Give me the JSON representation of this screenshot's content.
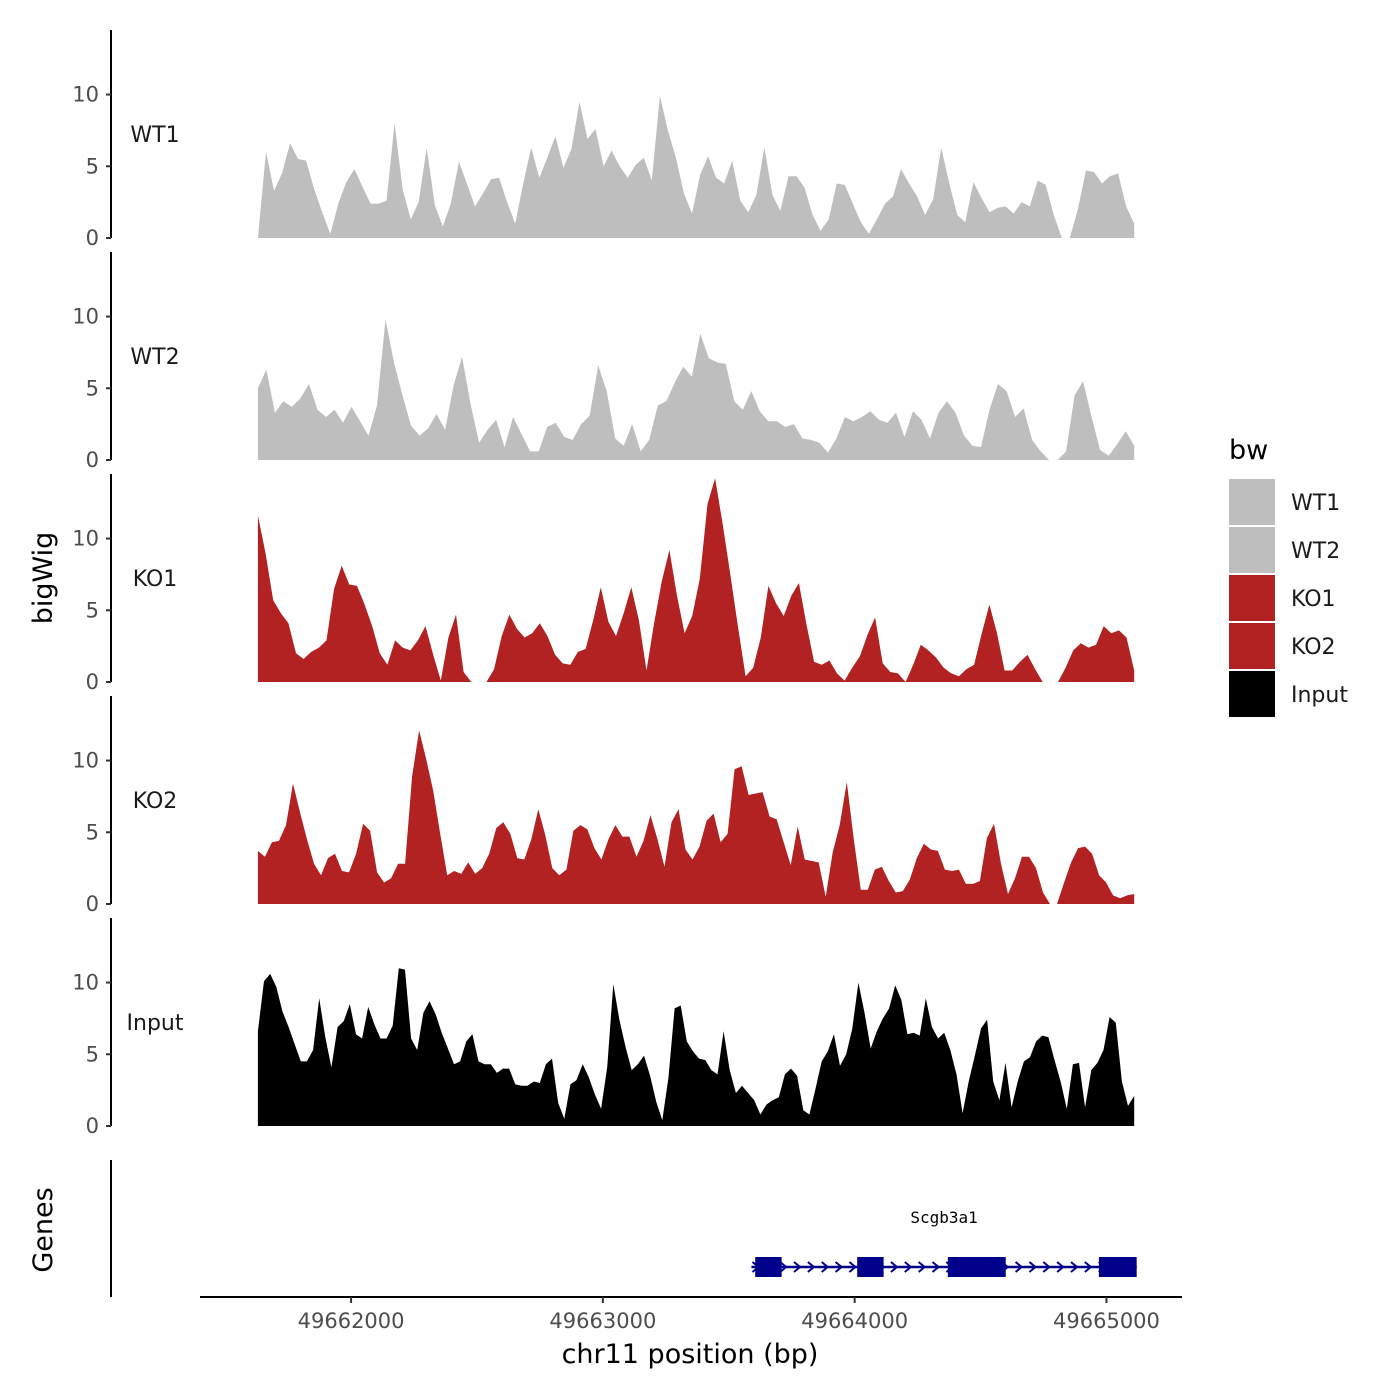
{
  "chart_data": {
    "type": "area",
    "ylabel": "bigWig",
    "xlabel": "chr11 position (bp)",
    "genes_label": "Genes",
    "xlim": [
      49661400,
      49665300
    ],
    "data_xrange": [
      49661630,
      49665110
    ],
    "x_ticks": [
      {
        "value": 49662000,
        "label": "49662000"
      },
      {
        "value": 49663000,
        "label": "49663000"
      },
      {
        "value": 49664000,
        "label": "49664000"
      },
      {
        "value": 49665000,
        "label": "49665000"
      }
    ],
    "ylim": [
      0,
      14.5
    ],
    "y_ticks": [
      {
        "value": 0,
        "label": "0"
      },
      {
        "value": 5,
        "label": "5"
      },
      {
        "value": 10,
        "label": "10"
      }
    ],
    "legend": {
      "title": "bw",
      "entries": [
        {
          "label": "WT1",
          "color": "#bebebe"
        },
        {
          "label": "WT2",
          "color": "#bebebe"
        },
        {
          "label": "KO1",
          "color": "#b22222"
        },
        {
          "label": "KO2",
          "color": "#b22222"
        },
        {
          "label": "Input",
          "color": "#000000"
        }
      ]
    },
    "series": [
      {
        "name": "WT1",
        "color": "#bebebe",
        "values": [
          0,
          6,
          3.3,
          4.5,
          6.6,
          5.5,
          5.4,
          3.4,
          1.8,
          0.3,
          2.4,
          3.9,
          4.8,
          3.6,
          2.4,
          2.4,
          2.6,
          8,
          3.4,
          1.3,
          2.5,
          6.3,
          2.3,
          0.8,
          2.4,
          5.3,
          3.8,
          2.2,
          3.1,
          4.1,
          4.2,
          2.5,
          1,
          3.8,
          6.3,
          4.2,
          5.6,
          7.1,
          4.9,
          6.2,
          9.5,
          6.9,
          7.6,
          5,
          6.1,
          5,
          4.2,
          5.1,
          5.6,
          4,
          9.9,
          7.5,
          5.6,
          3.1,
          1.7,
          4.4,
          5.7,
          4.2,
          3.8,
          5.4,
          2.6,
          1.8,
          3,
          6.3,
          3,
          1.9,
          4.3,
          4.3,
          3.5,
          1.6,
          0.5,
          1.3,
          3.8,
          3.7,
          2.4,
          1.1,
          0.3,
          1.3,
          2.4,
          2.9,
          4.8,
          3.8,
          2.9,
          1.6,
          2.7,
          6.3,
          3.8,
          1.6,
          1.1,
          3.9,
          2.8,
          1.8,
          2.1,
          2.2,
          1.7,
          2.5,
          2.2,
          4,
          3.7,
          1.6,
          0,
          0,
          2,
          4.7,
          4.6,
          3.8,
          4.3,
          4.5,
          2.2,
          1
        ]
      },
      {
        "name": "WT2",
        "color": "#bebebe",
        "values": [
          5,
          6.3,
          3.3,
          4.1,
          3.7,
          4.3,
          5.3,
          3.5,
          3,
          3.5,
          2.6,
          3.7,
          2.7,
          1.7,
          3.8,
          9.8,
          6.8,
          4.5,
          2.4,
          1.7,
          2.2,
          3.2,
          2.1,
          5.2,
          7.2,
          3.9,
          1.2,
          2.1,
          2.8,
          0.9,
          3,
          1.8,
          0.6,
          0.6,
          2.3,
          2.6,
          1.6,
          1.4,
          2.5,
          3.1,
          6.6,
          4.8,
          1.5,
          1,
          2.5,
          0.6,
          1.4,
          3.8,
          4.1,
          5.4,
          6.5,
          5.8,
          8.8,
          7.1,
          6.8,
          6.7,
          4.1,
          3.5,
          4.8,
          3.4,
          2.7,
          2.7,
          2.3,
          2.5,
          1.5,
          1.4,
          1.2,
          0.5,
          1.5,
          3,
          2.7,
          3,
          3.4,
          2.8,
          2.6,
          3.3,
          1.6,
          3.4,
          2.8,
          1.5,
          3.3,
          4.1,
          3.3,
          1.7,
          1,
          0.9,
          3.5,
          5.3,
          4.8,
          3,
          3.6,
          1.4,
          0.6,
          0,
          0,
          0.6,
          4.5,
          5.5,
          3,
          0.7,
          0.3,
          1.1,
          2,
          1
        ]
      },
      {
        "name": "KO1",
        "color": "#b22222",
        "values": [
          11.6,
          9,
          5.7,
          4.8,
          4.1,
          2,
          1.6,
          2.1,
          2.4,
          2.9,
          6.5,
          8.1,
          6.8,
          6.7,
          5.4,
          3.9,
          2,
          1.2,
          2.9,
          2.4,
          2.2,
          2.9,
          3.9,
          1.9,
          0.1,
          3.1,
          4.7,
          0.7,
          0,
          0,
          0,
          0.9,
          3.2,
          4.7,
          3.7,
          3.1,
          3.4,
          4.1,
          3.2,
          1.9,
          1.3,
          1.2,
          2.1,
          2.3,
          4.3,
          6.6,
          4.2,
          3.2,
          4.8,
          6.6,
          4.3,
          0.8,
          4.1,
          7,
          9.2,
          6,
          3.4,
          4.6,
          7.2,
          12.4,
          14.2,
          11,
          7.5,
          3.9,
          0.4,
          1,
          3.1,
          6.7,
          5.5,
          4.6,
          6,
          6.9,
          4,
          1.4,
          1.2,
          1.5,
          0.6,
          0.1,
          1,
          1.8,
          3.3,
          4.5,
          1.3,
          0.7,
          0.6,
          0,
          1.2,
          2.6,
          2.2,
          1.7,
          1,
          0.6,
          0.4,
          0.9,
          1.2,
          3.4,
          5.4,
          3.4,
          0.8,
          0.8,
          1.4,
          1.9,
          0.9,
          0,
          0,
          0,
          1,
          2.2,
          2.7,
          2.4,
          2.6,
          3.9,
          3.4,
          3.6,
          3.1,
          0.8
        ]
      },
      {
        "name": "KO2",
        "color": "#b22222",
        "values": [
          3.7,
          3.3,
          4.3,
          4.4,
          5.5,
          8.4,
          6.4,
          4.5,
          2.8,
          2,
          3.2,
          3.5,
          2.3,
          2.2,
          3.5,
          5.6,
          5.1,
          2.2,
          1.5,
          1.8,
          2.8,
          2.8,
          8.9,
          12.1,
          10.1,
          7.9,
          4.9,
          2,
          2.3,
          2.1,
          2.9,
          2.1,
          2.5,
          3.5,
          5.3,
          5.7,
          4.9,
          3.2,
          3.1,
          4.5,
          6.6,
          4.8,
          2.5,
          2,
          2.4,
          5.1,
          5.5,
          5.2,
          3.9,
          3.1,
          4.5,
          5.5,
          4.7,
          4.7,
          3.3,
          4.4,
          6.2,
          4.5,
          2.6,
          5.7,
          6.6,
          3.8,
          3.1,
          4,
          5.8,
          6.3,
          4.3,
          4.9,
          9.4,
          9.6,
          7.6,
          7.7,
          7.8,
          6.1,
          5.9,
          4.3,
          2.7,
          5.4,
          3.1,
          3,
          2.9,
          0.5,
          3.6,
          5.5,
          8.5,
          4.5,
          1,
          1,
          2.4,
          2.6,
          1.6,
          0.8,
          0.9,
          1.7,
          3.2,
          4.2,
          3.8,
          3.7,
          2.4,
          2.3,
          2.4,
          1.4,
          1.4,
          1.6,
          4.6,
          5.6,
          2.8,
          0.7,
          1.8,
          3.3,
          3.3,
          2.5,
          0.8,
          0,
          0,
          1.5,
          2.9,
          3.9,
          4,
          3.5,
          2,
          1.5,
          0.6,
          0.4,
          0.6,
          0.7
        ]
      },
      {
        "name": "Input",
        "color": "#000000",
        "values": [
          6.6,
          10.1,
          10.6,
          9.7,
          8,
          6.9,
          5.7,
          4.5,
          4.5,
          5.3,
          8.9,
          6.2,
          4.1,
          6.9,
          7.3,
          8.5,
          6.4,
          6.1,
          8.3,
          7.1,
          6.1,
          6.1,
          7,
          11,
          10.9,
          6.1,
          5.3,
          7.9,
          8.7,
          7.8,
          6.5,
          5.4,
          4.3,
          4.5,
          5.9,
          6.4,
          4.5,
          4.3,
          4.3,
          3.7,
          4,
          4,
          2.9,
          2.8,
          2.8,
          3.1,
          3,
          4.3,
          4.7,
          1.6,
          0.5,
          2.9,
          3.2,
          4.3,
          3.4,
          2.2,
          1.2,
          4.1,
          9.9,
          7.4,
          5.5,
          3.9,
          4.3,
          4.9,
          3.5,
          1.7,
          0.4,
          3.4,
          8.2,
          8.4,
          5.9,
          5.2,
          4.7,
          4.6,
          3.9,
          3.6,
          6.6,
          3.9,
          2.3,
          2.8,
          2.3,
          1.8,
          0.8,
          1.5,
          1.8,
          2,
          3.6,
          4,
          3.5,
          1.1,
          0.8,
          2.6,
          4.5,
          5.2,
          6.4,
          4.2,
          5,
          6.8,
          10,
          7.9,
          5.4,
          6.6,
          7.5,
          8.2,
          9.8,
          8.8,
          6.4,
          6.5,
          6.3,
          8.9,
          6.9,
          6.1,
          6.5,
          5.3,
          3.6,
          0.9,
          3.1,
          4.9,
          6.8,
          7.4,
          3.1,
          1.8,
          4.4,
          1.3,
          3.1,
          4.5,
          4.8,
          5.9,
          6.3,
          6.2,
          4.6,
          3.1,
          1.2,
          4.3,
          4.4,
          1.3,
          3.9,
          4.4,
          5.3,
          7.6,
          7.2,
          3.1,
          1.4,
          2.1
        ]
      }
    ],
    "gene_model": {
      "name": "Scgb3a1",
      "strand": "+",
      "start": 49663590,
      "end": 49665120,
      "exons": [
        {
          "start": 49663605,
          "end": 49663710
        },
        {
          "start": 49664010,
          "end": 49664115
        },
        {
          "start": 49664370,
          "end": 49664600
        },
        {
          "start": 49664970,
          "end": 49665120
        }
      ]
    }
  }
}
